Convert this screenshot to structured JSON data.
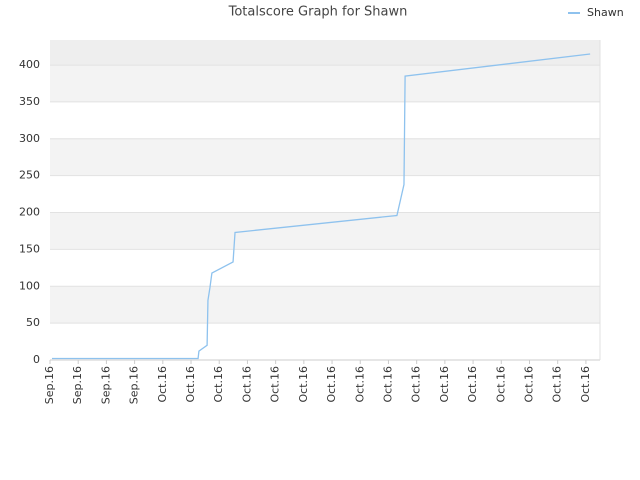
{
  "chart_data": {
    "type": "line",
    "title": "Totalscore Graph for Shawn",
    "x": [
      0.07,
      5.25,
      5.28,
      5.57,
      5.6,
      5.67,
      5.74,
      6.49,
      6.56,
      12.3,
      12.55,
      12.59,
      19.15
    ],
    "series": [
      {
        "name": "Shawn",
        "color": "#8ec2ee",
        "values": [
          2,
          2,
          12,
          20,
          81,
          98,
          118,
          133,
          173,
          196,
          238,
          385,
          415
        ]
      }
    ],
    "xlim": [
      0,
      19.5
    ],
    "xticks": [
      {
        "value": 0,
        "label": "Sep.16"
      },
      {
        "value": 1,
        "label": "Sep.16"
      },
      {
        "value": 2,
        "label": "Sep.16"
      },
      {
        "value": 3,
        "label": "Sep.16"
      },
      {
        "value": 4,
        "label": "Oct.16"
      },
      {
        "value": 5,
        "label": "Oct.16"
      },
      {
        "value": 6,
        "label": "Oct.16"
      },
      {
        "value": 7,
        "label": "Oct.16"
      },
      {
        "value": 8,
        "label": "Oct.16"
      },
      {
        "value": 9,
        "label": "Oct.16"
      },
      {
        "value": 10,
        "label": "Oct.16"
      },
      {
        "value": 11,
        "label": "Oct.16"
      },
      {
        "value": 12,
        "label": "Oct.16"
      },
      {
        "value": 13,
        "label": "Oct.16"
      },
      {
        "value": 14,
        "label": "Oct.16"
      },
      {
        "value": 15,
        "label": "Oct.16"
      },
      {
        "value": 16,
        "label": "Oct.16"
      },
      {
        "value": 17,
        "label": "Oct.16"
      },
      {
        "value": 18,
        "label": "Oct.16"
      },
      {
        "value": 19,
        "label": "Oct.16"
      }
    ],
    "ylim": [
      0,
      434
    ],
    "yticks": [
      0,
      50,
      100,
      150,
      200,
      250,
      300,
      350,
      400
    ],
    "grid": true,
    "legend": "top-right"
  }
}
